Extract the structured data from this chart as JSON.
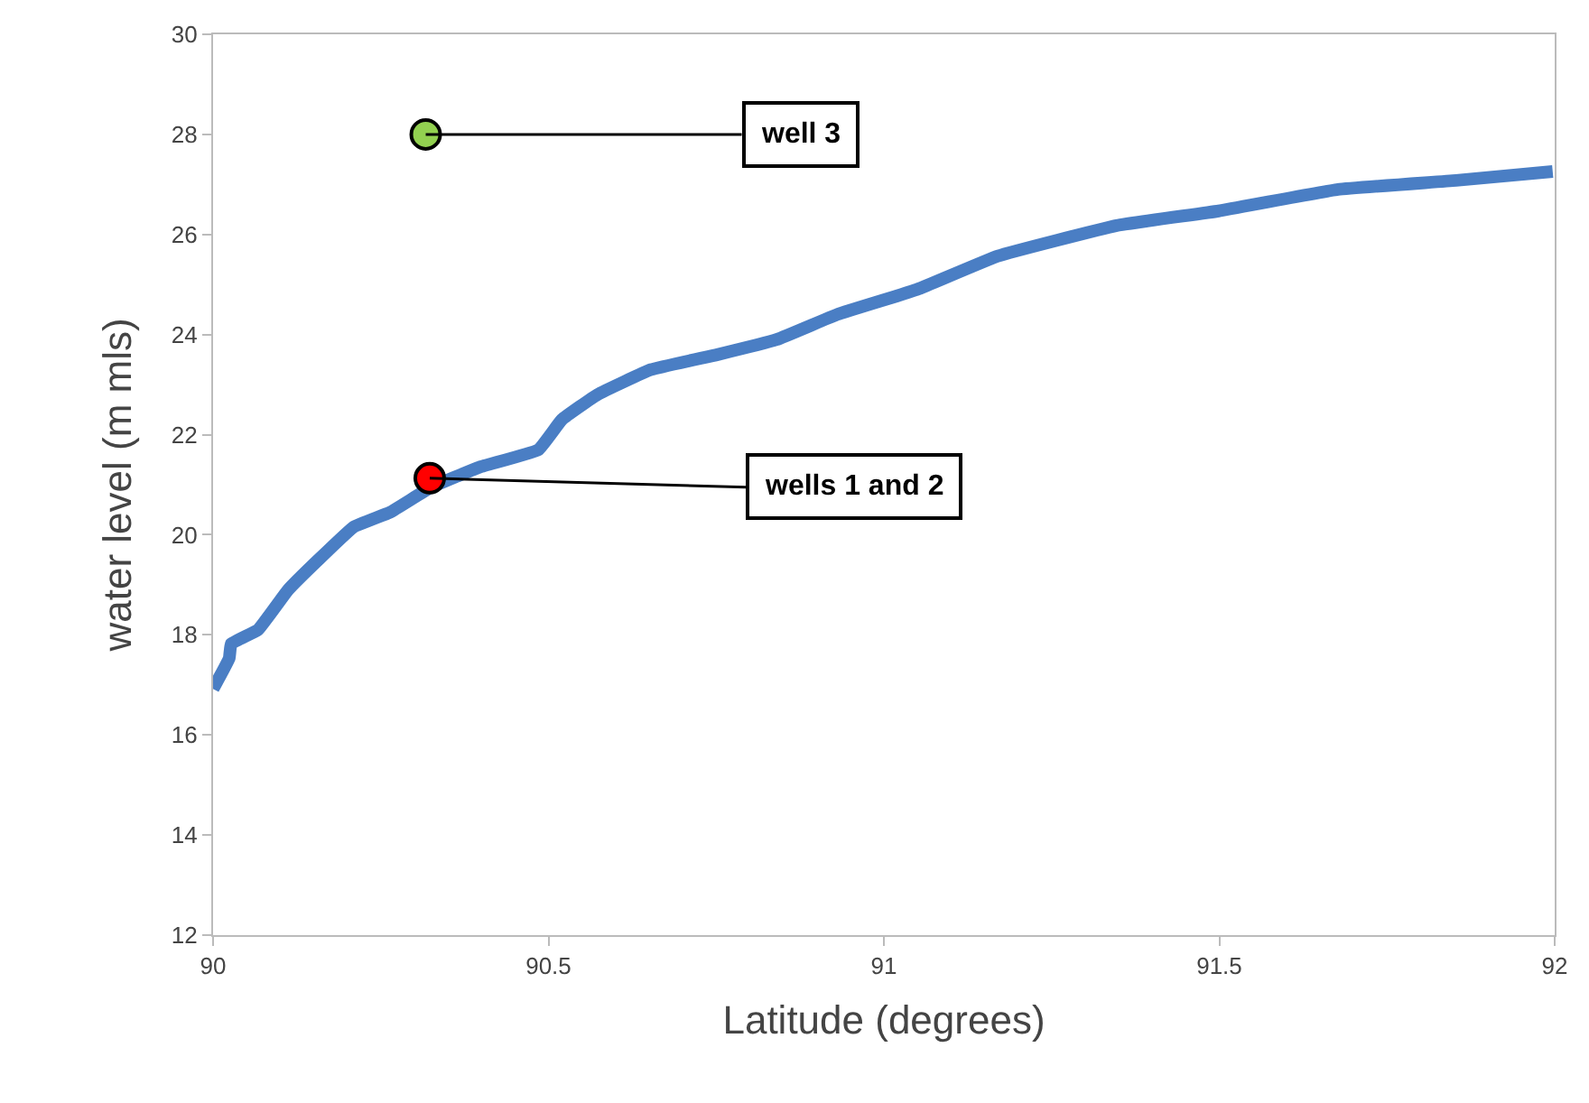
{
  "chart_data": {
    "type": "line",
    "xlabel": "Latitude (degrees)",
    "ylabel": "water level (m mls)",
    "xlim": [
      90,
      92
    ],
    "xticks": [
      90,
      90.5,
      91,
      91.5,
      92
    ],
    "ylim": [
      12,
      30
    ],
    "yticks": [
      12,
      14,
      16,
      18,
      20,
      22,
      24,
      26,
      28,
      30
    ],
    "series": [
      {
        "marker": "none",
        "color": "#4a7ec4",
        "x": [
          90,
          90.024,
          90.027,
          90.067,
          90.112,
          90.157,
          90.21,
          90.264,
          90.325,
          90.397,
          90.485,
          90.52,
          90.573,
          90.653,
          90.752,
          90.84,
          90.93,
          91.019,
          91.053,
          91.17,
          91.347,
          91.499,
          91.677,
          91.853,
          91.997
        ],
        "values": [
          16.92,
          17.53,
          17.82,
          18.1,
          18.9,
          19.5,
          20.16,
          20.45,
          20.95,
          21.35,
          21.7,
          22.3,
          22.8,
          23.3,
          23.6,
          23.9,
          24.4,
          24.77,
          24.92,
          25.57,
          26.18,
          26.47,
          26.9,
          27.08,
          27.26
        ]
      },
      {
        "type": "scatter",
        "marker": "circle",
        "color": "#92d050",
        "x": [
          90.317
        ],
        "values": [
          28
        ]
      },
      {
        "type": "scatter",
        "marker": "circle",
        "color": "#ff0000",
        "x": [
          90.323
        ],
        "values": [
          21.13
        ]
      }
    ],
    "annotations": [
      {
        "text": "well 3",
        "x": 90.317,
        "y": 28
      },
      {
        "text": "wells 1 and 2",
        "x": 90.323,
        "y": 21.13
      }
    ]
  }
}
